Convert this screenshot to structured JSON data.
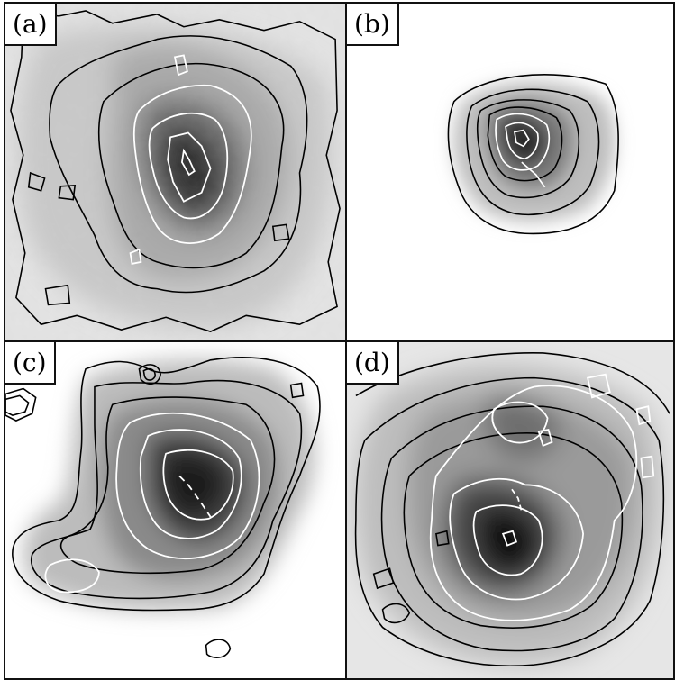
{
  "figure": {
    "panels": [
      {
        "id": "a",
        "label": "(a)"
      },
      {
        "id": "b",
        "label": "(b)"
      },
      {
        "id": "c",
        "label": "(c)"
      },
      {
        "id": "d",
        "label": "(d)"
      }
    ]
  }
}
